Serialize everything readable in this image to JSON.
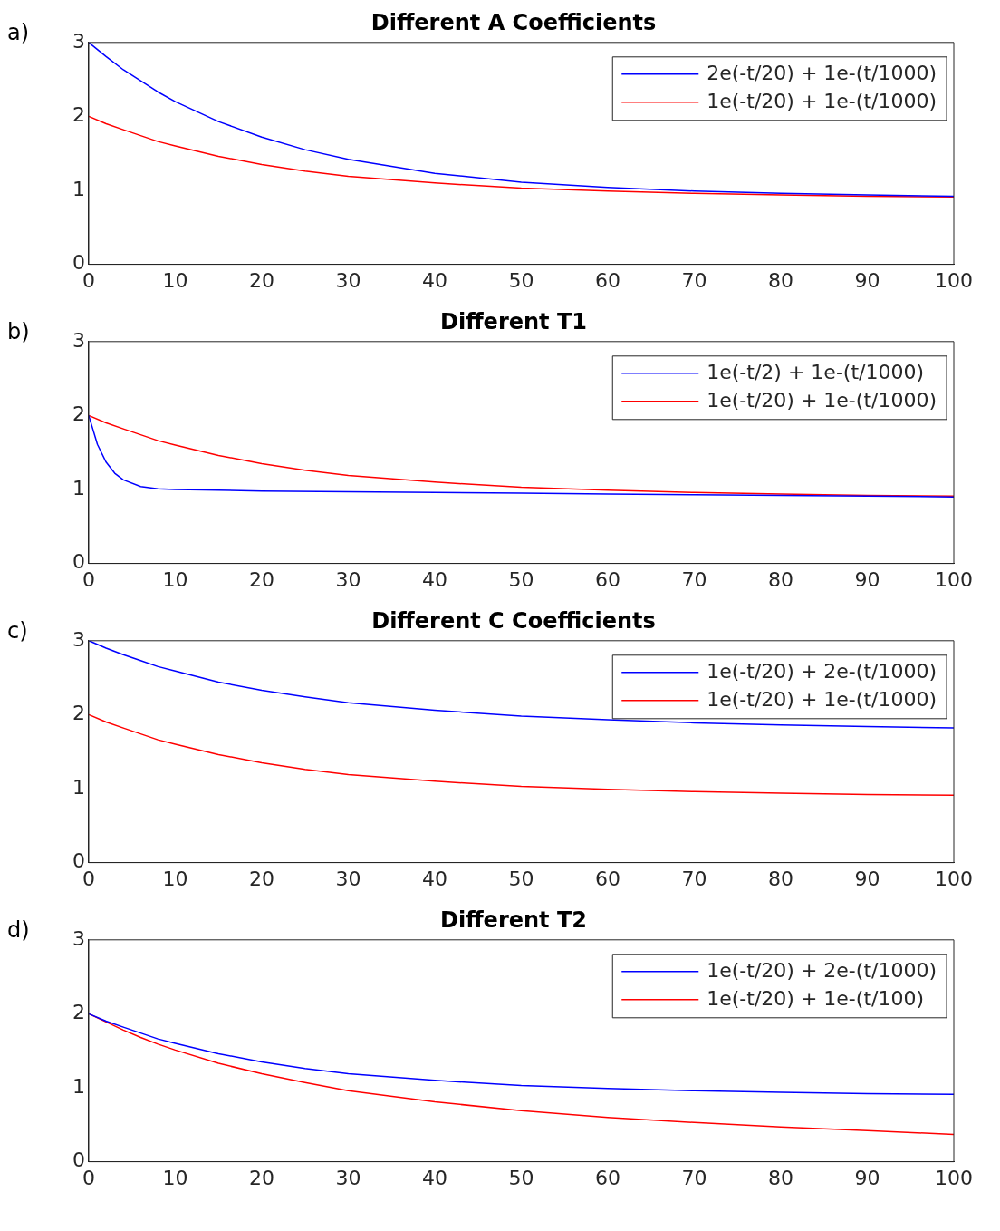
{
  "chart_data": [
    {
      "type": "line",
      "title": "Different A Coefficients",
      "annotations": [
        "a)"
      ],
      "x": [
        0,
        2,
        4,
        6,
        8,
        10,
        15,
        20,
        25,
        30,
        40,
        50,
        60,
        70,
        80,
        90,
        100
      ],
      "xlim": [
        0,
        100
      ],
      "xticks": [
        0,
        10,
        20,
        30,
        40,
        50,
        60,
        70,
        80,
        90,
        100
      ],
      "ylim": [
        0,
        3
      ],
      "yticks": [
        0,
        1,
        2,
        3
      ],
      "grid": false,
      "legend": "top right",
      "marker": "none",
      "line_style": "solid",
      "series": [
        {
          "name": "2e(-t/20) + 1e-(t/1000)",
          "color": "#0000ff",
          "values": [
            3,
            2.81,
            2.63,
            2.48,
            2.33,
            2.2,
            1.93,
            1.72,
            1.55,
            1.42,
            1.23,
            1.11,
            1.04,
            0.99,
            0.96,
            0.94,
            0.92
          ]
        },
        {
          "name": "1e(-t/20) + 1e-(t/1000)",
          "color": "#ff0000",
          "values": [
            2,
            1.9,
            1.82,
            1.74,
            1.66,
            1.6,
            1.46,
            1.35,
            1.26,
            1.19,
            1.1,
            1.03,
            0.99,
            0.96,
            0.94,
            0.92,
            0.91
          ]
        }
      ]
    },
    {
      "type": "line",
      "title": "Different T1",
      "annotations": [
        "b)"
      ],
      "x": [
        0,
        2,
        4,
        6,
        8,
        10,
        15,
        20,
        25,
        30,
        40,
        50,
        60,
        70,
        80,
        90,
        100
      ],
      "xlim": [
        0,
        100
      ],
      "xticks": [
        0,
        10,
        20,
        30,
        40,
        50,
        60,
        70,
        80,
        90,
        100
      ],
      "ylim": [
        0,
        3
      ],
      "yticks": [
        0,
        1,
        2,
        3
      ],
      "grid": false,
      "legend": "top right",
      "marker": "none",
      "line_style": "solid",
      "series": [
        {
          "name": "1e(-t/2) + 1e-(t/1000)",
          "color": "#0000ff",
          "x": [
            0,
            1,
            2,
            3,
            4,
            6,
            8,
            10,
            20,
            30,
            40,
            50,
            60,
            70,
            80,
            90,
            100
          ],
          "values": [
            2,
            1.61,
            1.37,
            1.22,
            1.13,
            1.04,
            1.01,
            1,
            0.98,
            0.97,
            0.96,
            0.95,
            0.94,
            0.93,
            0.92,
            0.91,
            0.9
          ]
        },
        {
          "name": "1e(-t/20) + 1e-(t/1000)",
          "color": "#ff0000",
          "values": [
            2,
            1.9,
            1.82,
            1.74,
            1.66,
            1.6,
            1.46,
            1.35,
            1.26,
            1.19,
            1.1,
            1.03,
            0.99,
            0.96,
            0.94,
            0.92,
            0.91
          ]
        }
      ]
    },
    {
      "type": "line",
      "title": "Different C Coefficients",
      "annotations": [
        "c)"
      ],
      "x": [
        0,
        2,
        4,
        6,
        8,
        10,
        15,
        20,
        25,
        30,
        40,
        50,
        60,
        70,
        80,
        90,
        100
      ],
      "xlim": [
        0,
        100
      ],
      "xticks": [
        0,
        10,
        20,
        30,
        40,
        50,
        60,
        70,
        80,
        90,
        100
      ],
      "ylim": [
        0,
        3
      ],
      "yticks": [
        0,
        1,
        2,
        3
      ],
      "grid": false,
      "legend": "top right",
      "marker": "none",
      "line_style": "solid",
      "series": [
        {
          "name": "1e(-t/20) + 2e-(t/1000)",
          "color": "#0000ff",
          "values": [
            3,
            2.9,
            2.81,
            2.73,
            2.65,
            2.59,
            2.44,
            2.33,
            2.24,
            2.16,
            2.06,
            1.98,
            1.93,
            1.89,
            1.86,
            1.84,
            1.82
          ]
        },
        {
          "name": "1e(-t/20) + 1e-(t/1000)",
          "color": "#ff0000",
          "values": [
            2,
            1.9,
            1.82,
            1.74,
            1.66,
            1.6,
            1.46,
            1.35,
            1.26,
            1.19,
            1.1,
            1.03,
            0.99,
            0.96,
            0.94,
            0.92,
            0.91
          ]
        }
      ]
    },
    {
      "type": "line",
      "title": "Different T2",
      "annotations": [
        "d)"
      ],
      "x": [
        0,
        2,
        4,
        6,
        8,
        10,
        15,
        20,
        25,
        30,
        40,
        50,
        60,
        70,
        80,
        90,
        100
      ],
      "xlim": [
        0,
        100
      ],
      "xticks": [
        0,
        10,
        20,
        30,
        40,
        50,
        60,
        70,
        80,
        90,
        100
      ],
      "ylim": [
        0,
        3
      ],
      "yticks": [
        0,
        1,
        2,
        3
      ],
      "grid": false,
      "legend": "top right",
      "marker": "none",
      "line_style": "solid",
      "series": [
        {
          "name": "1e(-t/20) + 2e-(t/1000)",
          "color": "#0000ff",
          "values": [
            2,
            1.9,
            1.82,
            1.74,
            1.66,
            1.6,
            1.46,
            1.35,
            1.26,
            1.19,
            1.1,
            1.03,
            0.99,
            0.96,
            0.94,
            0.92,
            0.91
          ]
        },
        {
          "name": "1e(-t/20) + 1e-(t/100)",
          "color": "#ff0000",
          "values": [
            2,
            1.89,
            1.78,
            1.68,
            1.59,
            1.51,
            1.33,
            1.19,
            1.07,
            0.96,
            0.81,
            0.69,
            0.6,
            0.53,
            0.47,
            0.42,
            0.37
          ]
        }
      ]
    }
  ]
}
